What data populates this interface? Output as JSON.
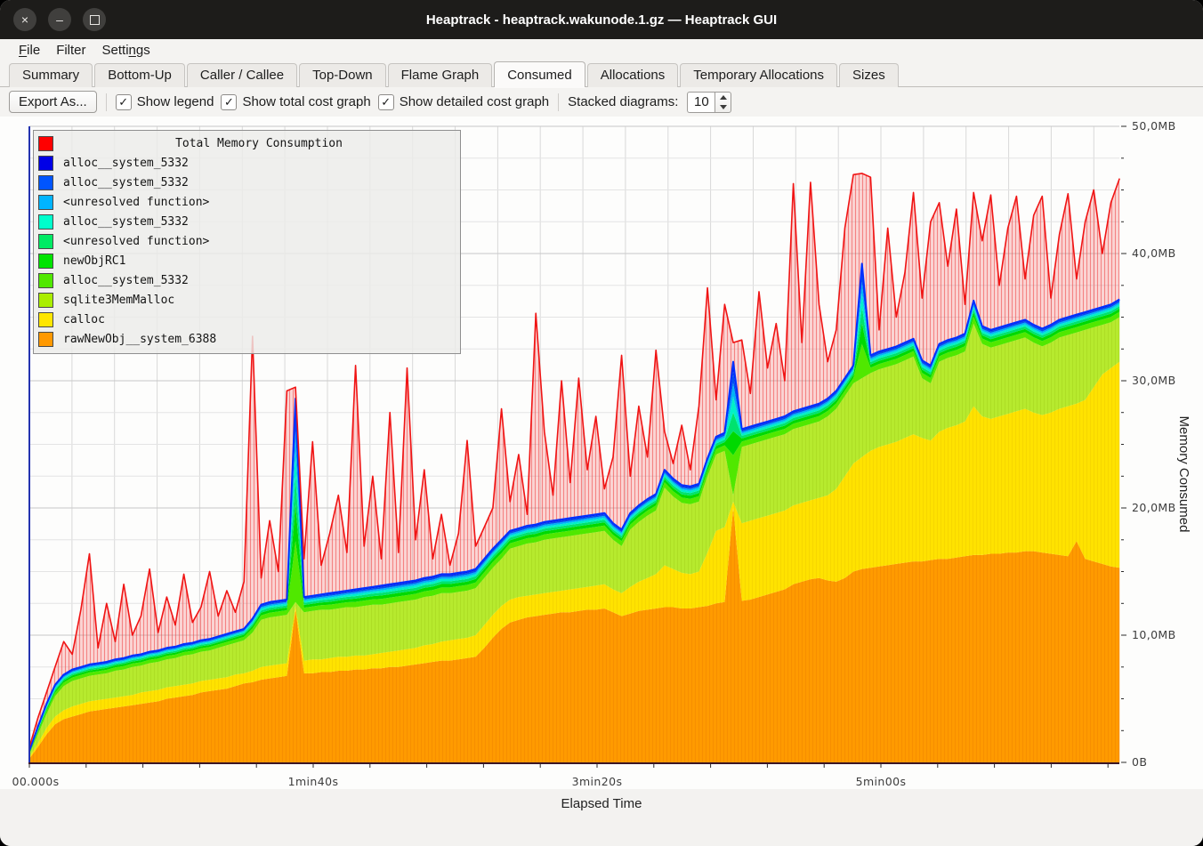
{
  "window": {
    "title": "Heaptrack - heaptrack.wakunode.1.gz — Heaptrack GUI",
    "controls": {
      "close": "×",
      "minimize": "–",
      "maximize": "□"
    }
  },
  "menu": {
    "items": [
      {
        "label": "File",
        "underline": 0
      },
      {
        "label": "Filter",
        "underline": -1
      },
      {
        "label": "Settings",
        "underline": 5
      }
    ]
  },
  "tabs": {
    "items": [
      "Summary",
      "Bottom-Up",
      "Caller / Callee",
      "Top-Down",
      "Flame Graph",
      "Consumed",
      "Allocations",
      "Temporary Allocations",
      "Sizes"
    ],
    "active": "Consumed"
  },
  "toolbar": {
    "export_label": "Export As...",
    "checkboxes": [
      {
        "label": "Show legend",
        "checked": true
      },
      {
        "label": "Show total cost graph",
        "checked": true
      },
      {
        "label": "Show detailed cost graph",
        "checked": true
      }
    ],
    "check_glyph": "✓",
    "stacked_label": "Stacked diagrams:",
    "stacked_value": "10"
  },
  "chart_data": {
    "type": "area",
    "title": "",
    "xlabel": "Elapsed Time",
    "ylabel": "Memory Consumed",
    "xlim": [
      0,
      384
    ],
    "ylim": [
      0,
      50
    ],
    "x": {
      "start": 0,
      "step": 3.024,
      "count": 128
    },
    "x_ticks": [
      {
        "v": 0,
        "label": "00.000s"
      },
      {
        "v": 100,
        "label": "1min40s"
      },
      {
        "v": 200,
        "label": "3min20s"
      },
      {
        "v": 300,
        "label": "5min00s"
      }
    ],
    "y_ticks": [
      {
        "v": 0,
        "label": "0B"
      },
      {
        "v": 10,
        "label": "10,0MB"
      },
      {
        "v": 20,
        "label": "20,0MB"
      },
      {
        "v": 30,
        "label": "30,0MB"
      },
      {
        "v": 40,
        "label": "40,0MB"
      },
      {
        "v": 50,
        "label": "50,0MB"
      }
    ],
    "grid": {
      "x_step": 15,
      "y_minor": 2.5,
      "y_major": 10,
      "x_axis_tick_step": 20
    },
    "legend_position": "top-left",
    "series": [
      {
        "name": "Total Memory Consumption",
        "color": "#ff0000",
        "role": "total"
      },
      {
        "name": "alloc__system_5332",
        "color": "#0000e6"
      },
      {
        "name": "alloc__system_5332",
        "color": "#0055ff"
      },
      {
        "name": "<unresolved function>",
        "color": "#00b4ff"
      },
      {
        "name": "alloc__system_5332",
        "color": "#00ffcc"
      },
      {
        "name": "<unresolved function>",
        "color": "#00eb64"
      },
      {
        "name": "newObjRC1",
        "color": "#00e400"
      },
      {
        "name": "alloc__system_5332",
        "color": "#50e800"
      },
      {
        "name": "sqlite3MemMalloc",
        "color": "#aaee00"
      },
      {
        "name": "calloc",
        "color": "#ffe600"
      },
      {
        "name": "rawNewObj__system_6388",
        "color": "#ff9900"
      }
    ],
    "thin_band_fractions": [
      {
        "color": "#50e800",
        "frac": 0.3
      },
      {
        "color": "#00d900",
        "frac": 0.18
      },
      {
        "color": "#00e26e",
        "frac": 0.14
      },
      {
        "color": "#00f0c8",
        "frac": 0.12
      },
      {
        "color": "#00b4f5",
        "frac": 0.1
      },
      {
        "color": "#0050f0",
        "frac": 0.09
      },
      {
        "color": "#0000d8",
        "frac": 0.07
      }
    ],
    "stack": {
      "orange_top_mb": [
        0.3,
        1.2,
        2.2,
        3.0,
        3.4,
        3.6,
        3.8,
        4.0,
        4.1,
        4.2,
        4.3,
        4.4,
        4.5,
        4.6,
        4.7,
        4.8,
        5.0,
        5.1,
        5.2,
        5.3,
        5.5,
        5.6,
        5.7,
        5.8,
        6.0,
        6.2,
        6.3,
        6.5,
        6.6,
        6.7,
        6.8,
        12.0,
        7.0,
        7.0,
        7.1,
        7.1,
        7.2,
        7.2,
        7.3,
        7.3,
        7.4,
        7.4,
        7.5,
        7.5,
        7.6,
        7.7,
        7.8,
        7.9,
        8.0,
        8.0,
        8.1,
        8.2,
        8.3,
        9.0,
        9.8,
        10.5,
        11.0,
        11.2,
        11.4,
        11.5,
        11.6,
        11.7,
        11.8,
        11.8,
        11.9,
        12.0,
        12.0,
        12.1,
        11.8,
        11.5,
        11.7,
        11.9,
        12.0,
        12.1,
        12.2,
        12.2,
        12.1,
        12.1,
        12.2,
        12.3,
        12.5,
        12.6,
        20.0,
        12.7,
        12.8,
        13.0,
        13.2,
        13.4,
        13.6,
        14.0,
        14.2,
        14.4,
        14.5,
        14.3,
        14.2,
        14.5,
        15.0,
        15.2,
        15.3,
        15.4,
        15.5,
        15.6,
        15.7,
        15.8,
        15.8,
        15.9,
        16.0,
        16.0,
        16.1,
        16.2,
        16.3,
        16.3,
        16.4,
        16.4,
        16.5,
        16.5,
        16.6,
        16.6,
        16.5,
        16.4,
        16.3,
        16.2,
        17.4,
        16.0,
        15.8,
        15.6,
        15.4,
        15.3
      ],
      "calloc_top_mb": [
        0.4,
        1.5,
        2.7,
        3.6,
        4.1,
        4.4,
        4.6,
        4.8,
        4.9,
        5.0,
        5.1,
        5.2,
        5.3,
        5.5,
        5.6,
        5.7,
        5.9,
        6.0,
        6.1,
        6.2,
        6.4,
        6.5,
        6.6,
        6.7,
        6.9,
        7.0,
        7.2,
        7.5,
        7.6,
        7.7,
        7.8,
        12.3,
        8.0,
        8.1,
        8.1,
        8.2,
        8.3,
        8.3,
        8.4,
        8.4,
        8.5,
        8.6,
        8.7,
        8.8,
        8.9,
        9.0,
        9.2,
        9.3,
        9.5,
        9.6,
        9.7,
        9.8,
        10.0,
        10.8,
        11.6,
        12.3,
        12.8,
        13.0,
        13.1,
        13.2,
        13.3,
        13.4,
        13.5,
        13.6,
        13.7,
        13.8,
        13.9,
        14.0,
        13.6,
        13.3,
        13.8,
        14.2,
        14.5,
        14.8,
        15.5,
        15.2,
        14.9,
        14.8,
        15.0,
        16.5,
        18.2,
        18.5,
        20.5,
        18.8,
        19.0,
        19.2,
        19.4,
        19.6,
        19.8,
        20.2,
        20.4,
        20.6,
        20.8,
        21.0,
        21.5,
        22.5,
        23.5,
        24.0,
        24.5,
        24.8,
        25.0,
        25.2,
        25.5,
        25.8,
        25.5,
        25.3,
        26.0,
        26.3,
        26.5,
        26.8,
        28.0,
        27.2,
        27.0,
        27.2,
        27.4,
        27.6,
        27.8,
        27.5,
        27.3,
        27.5,
        27.8,
        28.0,
        28.2,
        28.5,
        29.5,
        30.5,
        31.0,
        31.5
      ],
      "sqlite_top_mb": [
        0.6,
        2.2,
        3.8,
        5.2,
        6.0,
        6.4,
        6.6,
        6.8,
        6.9,
        7.0,
        7.2,
        7.3,
        7.5,
        7.6,
        7.8,
        7.9,
        8.1,
        8.2,
        8.4,
        8.5,
        8.7,
        8.8,
        9.0,
        9.2,
        9.4,
        9.6,
        10.2,
        11.2,
        11.4,
        11.5,
        11.6,
        12.6,
        11.8,
        11.9,
        12.0,
        12.0,
        12.1,
        12.2,
        12.2,
        12.3,
        12.4,
        12.4,
        12.5,
        12.6,
        12.7,
        12.8,
        13.0,
        13.1,
        13.3,
        13.3,
        13.4,
        13.5,
        13.7,
        14.5,
        15.3,
        16.0,
        16.8,
        17.0,
        17.2,
        17.3,
        17.5,
        17.6,
        17.7,
        17.8,
        17.9,
        18.0,
        18.1,
        18.2,
        17.5,
        17.0,
        18.3,
        18.9,
        19.4,
        19.8,
        21.6,
        20.9,
        20.4,
        20.3,
        20.5,
        22.5,
        24.2,
        24.5,
        21.0,
        24.8,
        25.0,
        25.2,
        25.4,
        25.6,
        25.8,
        26.2,
        26.4,
        26.6,
        26.8,
        27.2,
        27.8,
        28.8,
        29.8,
        30.2,
        30.6,
        30.9,
        31.1,
        31.3,
        31.6,
        31.9,
        30.2,
        29.8,
        31.5,
        31.8,
        32.0,
        32.3,
        34.5,
        32.9,
        32.6,
        32.8,
        33.0,
        33.2,
        33.4,
        33.0,
        32.7,
        33.0,
        33.4,
        33.6,
        33.8,
        34.0,
        34.2,
        34.4,
        34.6,
        35.0
      ],
      "stack_top_mb": [
        0.9,
        2.8,
        4.6,
        6.1,
        6.9,
        7.3,
        7.5,
        7.7,
        7.8,
        7.9,
        8.1,
        8.2,
        8.4,
        8.5,
        8.7,
        8.8,
        9.0,
        9.1,
        9.3,
        9.4,
        9.6,
        9.7,
        9.9,
        10.1,
        10.3,
        10.5,
        11.3,
        12.4,
        12.6,
        12.7,
        12.8,
        28.6,
        13.0,
        13.1,
        13.2,
        13.3,
        13.4,
        13.5,
        13.6,
        13.7,
        13.8,
        13.9,
        14.0,
        14.1,
        14.2,
        14.3,
        14.5,
        14.6,
        14.8,
        14.8,
        14.9,
        15.0,
        15.2,
        16.0,
        16.8,
        17.5,
        18.2,
        18.4,
        18.6,
        18.7,
        18.9,
        19.0,
        19.1,
        19.2,
        19.3,
        19.4,
        19.5,
        19.6,
        18.8,
        18.3,
        19.6,
        20.2,
        20.7,
        21.1,
        23.0,
        22.3,
        21.8,
        21.7,
        21.9,
        23.9,
        25.6,
        25.9,
        31.5,
        26.2,
        26.4,
        26.6,
        26.8,
        27.0,
        27.2,
        27.6,
        27.8,
        28.0,
        28.2,
        28.6,
        29.2,
        30.2,
        31.2,
        39.2,
        32.0,
        32.3,
        32.5,
        32.7,
        33.0,
        33.3,
        31.6,
        31.2,
        32.9,
        33.2,
        33.4,
        33.7,
        36.3,
        34.3,
        34.0,
        34.2,
        34.4,
        34.6,
        34.8,
        34.4,
        34.1,
        34.4,
        34.8,
        35.0,
        35.2,
        35.4,
        35.6,
        35.8,
        36.0,
        36.4
      ],
      "total_mb": [
        1.2,
        3.5,
        5.5,
        7.5,
        9.5,
        8.5,
        12.0,
        16.4,
        9.0,
        12.5,
        9.5,
        14.0,
        10.0,
        11.5,
        15.2,
        10.2,
        13.0,
        10.8,
        14.8,
        11.0,
        12.2,
        15.0,
        11.5,
        13.5,
        11.8,
        14.2,
        33.5,
        14.5,
        19.0,
        15.0,
        29.2,
        29.5,
        16.0,
        25.2,
        15.5,
        18.0,
        21.0,
        16.5,
        31.2,
        17.0,
        22.5,
        16.0,
        27.5,
        16.5,
        31.0,
        17.5,
        23.0,
        16.0,
        19.5,
        15.5,
        18.0,
        25.3,
        17.0,
        18.5,
        20.0,
        27.8,
        20.5,
        24.2,
        19.5,
        35.3,
        26.0,
        21.0,
        30.0,
        22.0,
        30.2,
        23.0,
        27.2,
        21.5,
        24.0,
        32.0,
        22.5,
        28.0,
        24.0,
        32.4,
        26.0,
        23.5,
        26.5,
        23.0,
        28.0,
        37.3,
        28.5,
        36.0,
        33.0,
        33.2,
        29.0,
        37.0,
        31.0,
        34.5,
        30.0,
        45.5,
        33.0,
        45.6,
        36.0,
        31.5,
        34.0,
        42.0,
        46.2,
        46.3,
        46.0,
        34.0,
        42.0,
        35.0,
        38.5,
        44.8,
        36.5,
        42.5,
        44.0,
        39.0,
        43.5,
        36.0,
        44.8,
        41.0,
        44.6,
        37.5,
        42.0,
        44.5,
        38.0,
        43.0,
        44.5,
        36.5,
        41.5,
        44.7,
        38.0,
        42.5,
        45.0,
        40.0,
        44.0,
        45.9
      ]
    },
    "colors": {
      "orange_fill": "#ff9b00",
      "orange_stripe": "#ee7f00",
      "yellow_fill": "#ffe300",
      "yellow_stripe": "#f0cb00",
      "sqlite_fill": "#b7ea2e",
      "sqlite_stripe": "#a3d41c",
      "total_fill": "rgba(246,86,86,0.24)",
      "total_stripe": "rgba(238,64,64,0.55)",
      "total_line": "#f01414",
      "stack_line": "#0030ff",
      "y_axis": "#2433b0",
      "x_axis": "#3a1525",
      "grid_minor": "#e4e4e4",
      "grid_major": "#c8c8c8",
      "grid_vert": "#d9d9d9"
    }
  }
}
